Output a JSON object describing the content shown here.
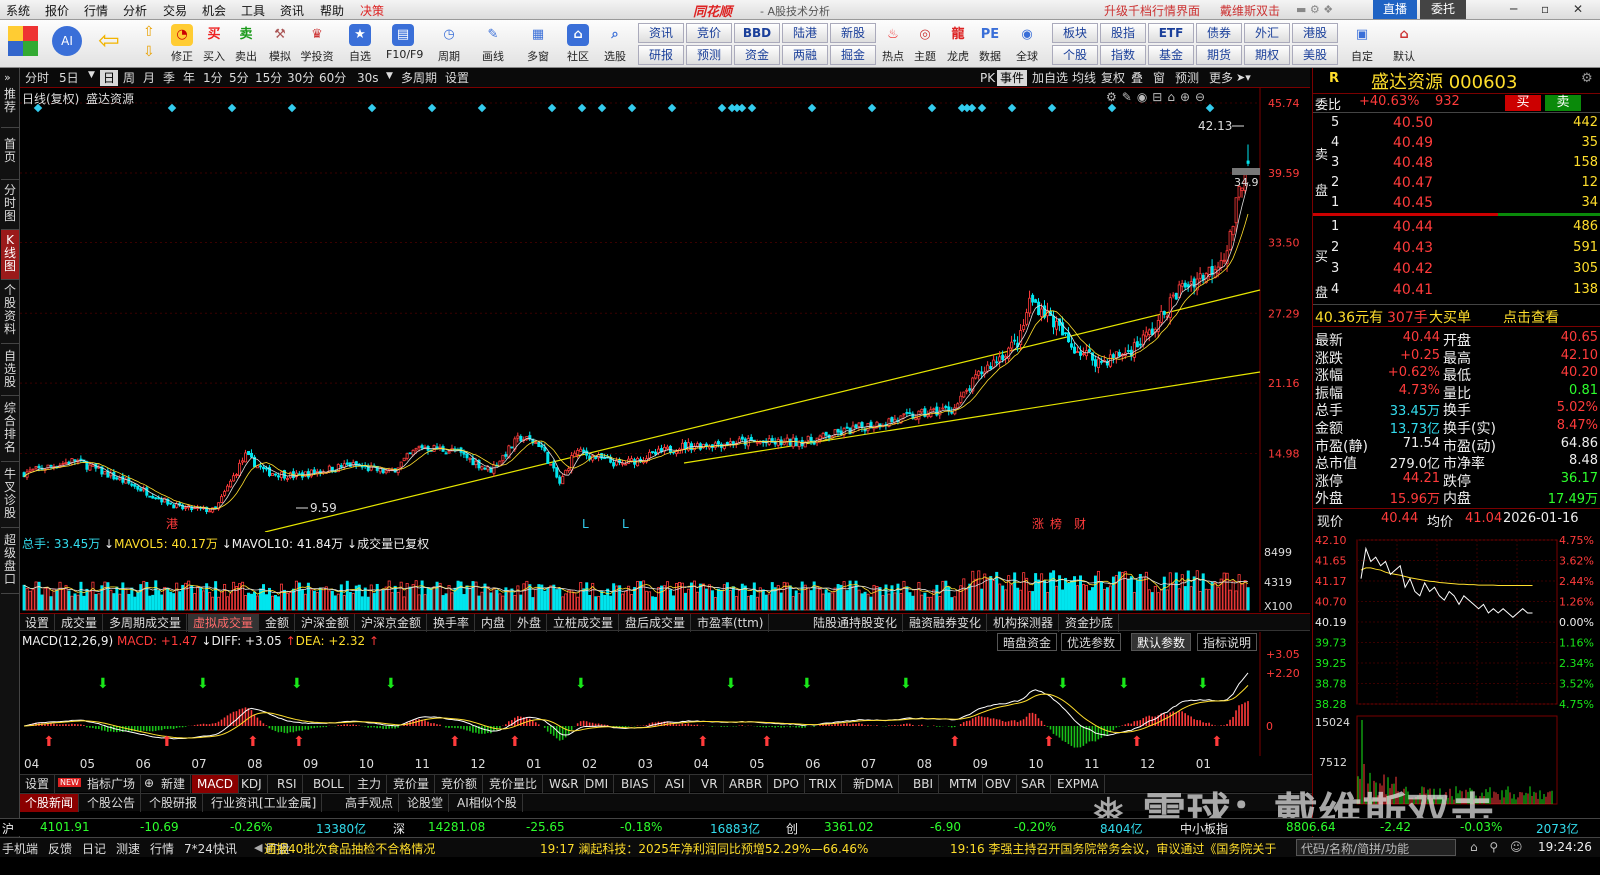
{
  "menubar": {
    "items": [
      "系统",
      "报价",
      "行情",
      "分析",
      "交易",
      "机会",
      "工具",
      "资讯",
      "帮助"
    ],
    "active_item": "决策",
    "brand": "同花顺",
    "subtitle": "- A股技术分析",
    "right_links": [
      "升级千档行情界面",
      "戴维斯双击"
    ],
    "right_buttons": [
      "直播",
      "委托"
    ]
  },
  "toolbar": {
    "buttons": [
      "修正",
      "买入",
      "卖出",
      "模拟",
      "学投资",
      "自选",
      "F10/F9",
      "周期",
      "画线",
      "多窗",
      "社区",
      "选股"
    ],
    "tags_row1": [
      "资讯",
      "竞价",
      "BBD",
      "陆港",
      "新股"
    ],
    "tags_row2": [
      "研报",
      "预测",
      "资金",
      "两融",
      "掘金"
    ],
    "right_buttons": [
      "热点",
      "主题",
      "龙虎",
      "数据",
      "全球"
    ],
    "tags_right_row1": [
      "板块",
      "股指",
      "ETF",
      "债券",
      "外汇",
      "港股"
    ],
    "tags_right_row2": [
      "个股",
      "指数",
      "基金",
      "期货",
      "期权",
      "美股"
    ],
    "far_right": [
      "自定",
      "默认"
    ]
  },
  "leftnav": [
    "推荐",
    "首页",
    "分时图",
    "K线图",
    "个股资料",
    "自选股",
    "综合排名",
    "牛叉诊股",
    "超级盘口"
  ],
  "chartbar": {
    "periods": [
      "分时",
      "5日",
      "日",
      "周",
      "月",
      "季",
      "年",
      "1分",
      "5分",
      "15分",
      "30分",
      "60分",
      "30s",
      "多周期",
      "设置"
    ],
    "active": "日",
    "right": [
      "PK",
      "事件",
      "加自选",
      "均线",
      "复权",
      "叠",
      "窗",
      "预测",
      "更多"
    ]
  },
  "kline": {
    "title": "日线(复权)",
    "name": "盛达资源",
    "price_axis": [
      "45.74",
      "39.59",
      "33.50",
      "27.29",
      "21.16",
      "14.98"
    ],
    "high_label": "42.13",
    "low_label": "9.59",
    "cur_label": "34.9",
    "markers": {
      "gang": "港",
      "l1": "L",
      "l2": "L",
      "zt": "涨",
      "bang": "榜",
      "cai": "财"
    }
  },
  "volume": {
    "header_total": "总手: 33.45万",
    "mavol5": "MAVOL5: 40.17万",
    "mavol10": "MAVOL10: 41.84万",
    "note": "成交量已复权",
    "axis": [
      "8499",
      "4319",
      "X100"
    ]
  },
  "indicator_tabs": [
    "设置",
    "成交量",
    "多周期成交量",
    "虚拟成交量",
    "金额",
    "沪深金额",
    "沪深京金额",
    "换手率",
    "内盘",
    "外盘",
    "立桩成交量",
    "盘后成交量",
    "市盈率(ttm)",
    "陆股通持股变化",
    "融资融券变化",
    "机构探测器",
    "资金抄底"
  ],
  "indicator_tab_active": "虚拟成交量",
  "macd": {
    "title": "MACD(12,26,9)",
    "macd": "MACD: +1.47",
    "diff": "DIFF: +3.05",
    "dea": "DEA: +2.32",
    "buttons": [
      "暗盘资金",
      "优选参数",
      "默认参数",
      "指标说明"
    ],
    "axis": [
      "+3.05",
      "+2.20",
      "0"
    ]
  },
  "months": [
    "04",
    "05",
    "06",
    "07",
    "08",
    "09",
    "10",
    "11",
    "12",
    "01",
    "02",
    "03",
    "04",
    "05",
    "06",
    "07",
    "08",
    "09",
    "10",
    "11",
    "12",
    "01"
  ],
  "bottom_tabs": [
    "设置",
    "指标广场",
    "新建",
    "MACD",
    "KDJ",
    "RSI",
    "BOLL",
    "主力",
    "竞价量",
    "竞价额",
    "竞价量比",
    "W&R",
    "DMI",
    "BIAS",
    "ASI",
    "VR",
    "ARBR",
    "DPO",
    "TRIX",
    "新DMA",
    "BBI",
    "MTM",
    "OBV",
    "SAR",
    "EXPMA"
  ],
  "news_tabs": [
    "个股新闻",
    "个股公告",
    "个股研报",
    "行业资讯[工业金属]",
    "高手观点",
    "论股堂",
    "AI相似个股"
  ],
  "index_bar": {
    "sh": {
      "name": "沪",
      "value": "4101.91",
      "chg": "-10.69",
      "pct": "-0.26%",
      "amt": "13380亿"
    },
    "sz": {
      "name": "深",
      "value": "14281.08",
      "chg": "-25.65",
      "pct": "-0.18%",
      "amt": "16883亿"
    },
    "cy": {
      "name": "创",
      "value": "3361.02",
      "chg": "-6.90",
      "pct": "-0.20%",
      "amt": "8404亿"
    },
    "zx": {
      "name": "中小板指",
      "value": "8806.64",
      "chg": "-2.42",
      "pct": "-0.03%",
      "amt": "2073亿"
    }
  },
  "status_bar": {
    "tabs": [
      "手机端",
      "反馈",
      "日记",
      "测速",
      "行情",
      "7*24快讯",
      "盯盘"
    ],
    "news1": "通报40批次食品抽检不合格情况",
    "news2": "19:17 澜起科技：2025年净利润同比预增52.29%—66.46%",
    "news3": "19:16 李强主持召开国务院常务会议，审议通过《国务院关于",
    "search": "代码/名称/简拼/功能",
    "time": "19:24:26"
  },
  "quote": {
    "code_title": "盛达资源 000603",
    "r": "R",
    "weibi_label": "委比",
    "weibi": "+40.63%",
    "weicha": "932",
    "buy_btn": "买",
    "sell_btn": "卖",
    "sell_label": "卖盘",
    "buy_label": "买盘",
    "asks": [
      [
        "5",
        "40.50",
        "442"
      ],
      [
        "4",
        "40.49",
        "35"
      ],
      [
        "3",
        "40.48",
        "158"
      ],
      [
        "2",
        "40.47",
        "12"
      ],
      [
        "1",
        "40.45",
        "34"
      ]
    ],
    "bids": [
      [
        "1",
        "40.44",
        "486"
      ],
      [
        "2",
        "40.43",
        "591"
      ],
      [
        "3",
        "40.42",
        "305"
      ],
      [
        "4",
        "40.41",
        "138"
      ]
    ],
    "bigorder": {
      "price": "40.36元有",
      "vol": "307手",
      "label": "大买单",
      "link": "点击查看"
    },
    "stats_left": [
      [
        "最新",
        "40.44"
      ],
      [
        "涨跌",
        "+0.25"
      ],
      [
        "涨幅",
        "+0.62%"
      ],
      [
        "振幅",
        "4.73%"
      ],
      [
        "总手",
        "33.45万"
      ],
      [
        "金额",
        "13.73亿"
      ],
      [
        "市盈(静)",
        "71.54"
      ],
      [
        "总市值",
        "279.0亿"
      ],
      [
        "涨停",
        "44.21"
      ],
      [
        "外盘",
        "15.96万"
      ]
    ],
    "stats_right": [
      [
        "开盘",
        "40.65"
      ],
      [
        "最高",
        "42.10"
      ],
      [
        "最低",
        "40.20"
      ],
      [
        "量比",
        "0.81"
      ],
      [
        "换手",
        "5.02%"
      ],
      [
        "换手(实)",
        "8.47%"
      ],
      [
        "市盈(动)",
        "64.86"
      ],
      [
        "市净率",
        "8.48"
      ],
      [
        "跌停",
        "36.17"
      ],
      [
        "内盘",
        "17.49万"
      ]
    ],
    "mini": {
      "label_price": "现价",
      "price": "40.44",
      "label_avg": "均价",
      "avg": "41.04",
      "date": "2026-01-16",
      "left_axis": [
        "42.10",
        "41.65",
        "41.17",
        "40.70",
        "40.19",
        "39.73",
        "39.25",
        "38.78",
        "38.28"
      ],
      "right_axis": [
        "4.75%",
        "3.62%",
        "2.44%",
        "1.26%",
        "0.00%",
        "1.16%",
        "2.34%",
        "3.52%",
        "4.75%"
      ],
      "vol_axis": [
        "15024",
        "7512"
      ],
      "series": [
        41.2,
        41.9,
        41.6,
        41.7,
        41.5,
        41.6,
        41.3,
        41.4,
        41.5,
        41.0,
        41.2,
        40.9,
        40.8,
        41.1,
        40.9,
        41.0,
        40.8,
        40.7,
        40.9,
        40.8,
        40.6,
        40.8,
        40.7,
        40.6,
        40.5,
        40.6,
        40.4,
        40.5,
        40.4,
        40.5,
        40.4,
        40.3,
        40.4,
        40.5,
        40.4,
        40.4
      ],
      "avg_series": [
        41.4,
        41.45,
        41.45,
        41.42,
        41.4,
        41.35,
        41.32,
        41.3,
        41.28,
        41.25,
        41.22,
        41.2,
        41.18,
        41.16,
        41.14,
        41.13,
        41.11,
        41.1,
        41.09,
        41.08,
        41.07,
        41.07,
        41.06,
        41.06,
        41.05,
        41.05,
        41.05,
        41.05,
        41.04,
        41.04,
        41.04,
        41.04,
        41.04,
        41.04,
        41.04,
        41.04
      ]
    }
  },
  "watermark": "雪球：戴维斯双击",
  "colors": {
    "up": "#ff3b3b",
    "down": "#00e5ee",
    "ma1": "#ffffff",
    "ma2": "#ffde2c",
    "trend": "#e6e600",
    "bg": "#000000"
  }
}
